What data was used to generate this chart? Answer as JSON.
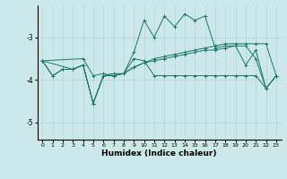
{
  "xlabel": "Humidex (Indice chaleur)",
  "ylabel": "",
  "background_color": "#cce8e8",
  "line_color": "#1a7a6e",
  "grid_color": "#b8d4d4",
  "xlim": [
    -0.5,
    23.5
  ],
  "ylim": [
    -5.4,
    -2.25
  ],
  "yticks": [
    -5,
    -4,
    -3
  ],
  "xticks": [
    0,
    1,
    2,
    3,
    4,
    5,
    6,
    7,
    8,
    9,
    10,
    11,
    12,
    13,
    14,
    15,
    16,
    17,
    18,
    19,
    20,
    21,
    22,
    23
  ],
  "series": [
    [
      [
        0,
        -3.55
      ],
      [
        1,
        -3.9
      ],
      [
        2,
        -3.75
      ],
      [
        3,
        -3.75
      ],
      [
        4,
        -3.65
      ],
      [
        5,
        -4.55
      ],
      [
        6,
        -3.9
      ],
      [
        7,
        -3.9
      ],
      [
        8,
        -3.85
      ],
      [
        9,
        -3.35
      ],
      [
        10,
        -2.6
      ],
      [
        11,
        -3.0
      ],
      [
        12,
        -2.5
      ],
      [
        13,
        -2.75
      ],
      [
        14,
        -2.45
      ],
      [
        15,
        -2.6
      ],
      [
        16,
        -2.5
      ],
      [
        17,
        -3.25
      ],
      [
        18,
        -3.2
      ],
      [
        19,
        -3.2
      ],
      [
        20,
        -3.65
      ],
      [
        21,
        -3.3
      ],
      [
        22,
        -4.2
      ],
      [
        23,
        -3.9
      ]
    ],
    [
      [
        0,
        -3.55
      ],
      [
        1,
        -3.9
      ],
      [
        2,
        -3.75
      ],
      [
        3,
        -3.75
      ],
      [
        4,
        -3.65
      ],
      [
        5,
        -4.55
      ],
      [
        6,
        -3.9
      ],
      [
        7,
        -3.9
      ],
      [
        8,
        -3.85
      ],
      [
        9,
        -3.5
      ],
      [
        10,
        -3.55
      ],
      [
        11,
        -3.9
      ],
      [
        12,
        -3.9
      ],
      [
        13,
        -3.9
      ],
      [
        14,
        -3.9
      ],
      [
        15,
        -3.9
      ],
      [
        16,
        -3.9
      ],
      [
        17,
        -3.9
      ],
      [
        18,
        -3.9
      ],
      [
        19,
        -3.9
      ],
      [
        20,
        -3.9
      ],
      [
        21,
        -3.9
      ],
      [
        22,
        -4.2
      ],
      [
        23,
        -3.9
      ]
    ],
    [
      [
        0,
        -3.55
      ],
      [
        4,
        -3.5
      ],
      [
        5,
        -3.9
      ],
      [
        6,
        -3.85
      ],
      [
        7,
        -3.9
      ],
      [
        8,
        -3.85
      ],
      [
        9,
        -3.7
      ],
      [
        10,
        -3.6
      ],
      [
        11,
        -3.55
      ],
      [
        12,
        -3.5
      ],
      [
        13,
        -3.45
      ],
      [
        14,
        -3.4
      ],
      [
        15,
        -3.35
      ],
      [
        16,
        -3.3
      ],
      [
        17,
        -3.3
      ],
      [
        18,
        -3.25
      ],
      [
        19,
        -3.2
      ],
      [
        20,
        -3.2
      ],
      [
        21,
        -3.5
      ],
      [
        22,
        -4.2
      ],
      [
        23,
        -3.9
      ]
    ],
    [
      [
        0,
        -3.55
      ],
      [
        3,
        -3.75
      ],
      [
        4,
        -3.65
      ],
      [
        5,
        -4.55
      ],
      [
        6,
        -3.9
      ],
      [
        7,
        -3.85
      ],
      [
        8,
        -3.85
      ],
      [
        9,
        -3.7
      ],
      [
        10,
        -3.6
      ],
      [
        11,
        -3.5
      ],
      [
        12,
        -3.45
      ],
      [
        13,
        -3.4
      ],
      [
        14,
        -3.35
      ],
      [
        15,
        -3.3
      ],
      [
        16,
        -3.25
      ],
      [
        17,
        -3.2
      ],
      [
        18,
        -3.15
      ],
      [
        19,
        -3.15
      ],
      [
        20,
        -3.15
      ],
      [
        21,
        -3.15
      ],
      [
        22,
        -3.15
      ],
      [
        23,
        -3.9
      ]
    ]
  ]
}
